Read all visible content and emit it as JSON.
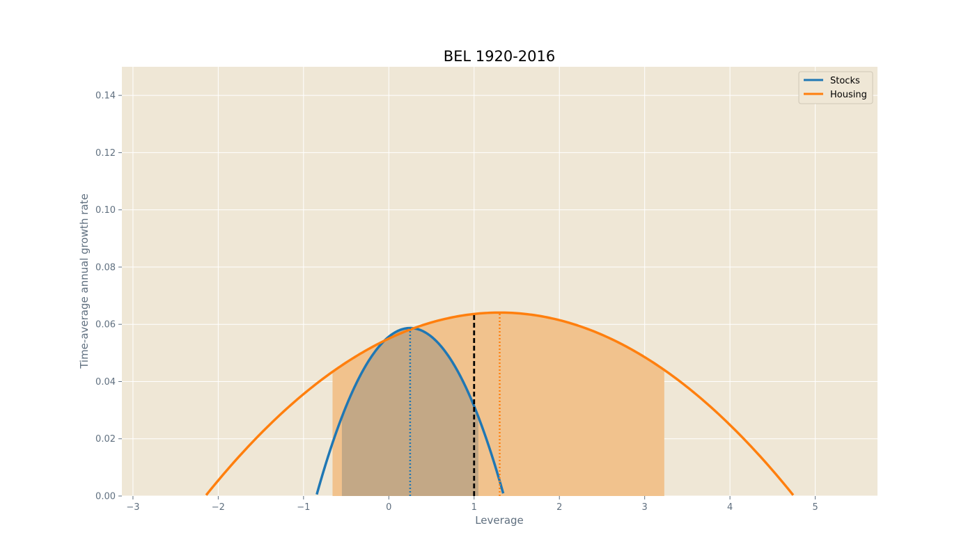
{
  "chart_data": {
    "type": "line",
    "title": "BEL 1920-2016",
    "xlabel": "Leverage",
    "ylabel": "Time-average annual growth rate",
    "xlim": [
      -3.13,
      5.73
    ],
    "ylim": [
      0.0,
      0.15
    ],
    "x_ticks": [
      -3,
      -2,
      -1,
      0,
      1,
      2,
      3,
      4,
      5
    ],
    "x_tick_labels": [
      "−3",
      "−2",
      "−1",
      "0",
      "1",
      "2",
      "3",
      "4",
      "5"
    ],
    "y_ticks": [
      0.0,
      0.02,
      0.04,
      0.06,
      0.08,
      0.1,
      0.12,
      0.14
    ],
    "y_tick_labels": [
      "0.00",
      "0.02",
      "0.04",
      "0.06",
      "0.08",
      "0.10",
      "0.12",
      "0.14"
    ],
    "grid": true,
    "legend_position": "top-right",
    "background_color": "#efe7d6",
    "series": [
      {
        "name": "Stocks",
        "color": "#1f77b4",
        "vertex": [
          0.25,
          0.0587
        ],
        "x_range": [
          -0.9,
          1.75
        ],
        "optimal_leverage": 0.25,
        "shaded_interval": [
          -0.55,
          1.05
        ],
        "shade_color": "#c3a886"
      },
      {
        "name": "Housing",
        "color": "#ff7f0e",
        "vertex": [
          1.3,
          0.0641
        ],
        "x_range": [
          -2.2,
          4.8
        ],
        "optimal_leverage": 1.3,
        "shaded_interval": [
          -0.66,
          3.23
        ],
        "shade_color": "#f1c28d"
      }
    ],
    "reference_line": {
      "x": 1,
      "color": "#000000",
      "style": "dashed"
    }
  }
}
